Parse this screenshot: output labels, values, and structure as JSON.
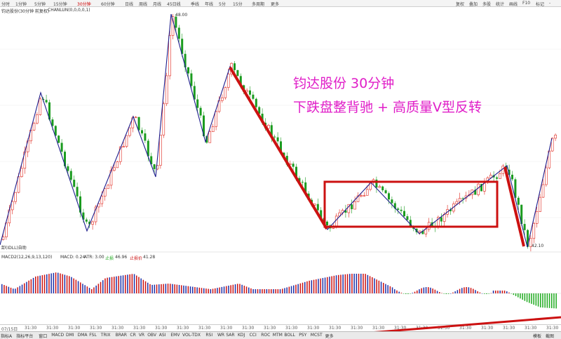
{
  "toolbar": {
    "timeframes": [
      "分时",
      "1分钟",
      "5分钟",
      "15分钟",
      "30分钟",
      "60分钟",
      "日线",
      "周线",
      "月线",
      "45日线",
      "季线",
      "年线",
      "5分",
      "15分",
      "多周期",
      "更多"
    ],
    "active_timeframe_index": 4,
    "right_items": [
      "复权",
      "叠加",
      "多股",
      "统计",
      "画线",
      "F10",
      "标记",
      "-"
    ]
  },
  "info_bar": {
    "stock_label": "钧达股份(30分钟 前复权)",
    "indicator_label": "CHANLUN(0,0,0,0,1)"
  },
  "main_chart": {
    "high_price_label": "48.00",
    "low_left_label": "卸(IDLL)自助",
    "low_right_label": "42.10"
  },
  "annotation": {
    "line1": "钧达股份  30分钟",
    "line2": "下跌盘整背驰 + 高质量V型反转"
  },
  "macd_bar": {
    "label": "MACD2(12,26,9,13,120)",
    "macd_value": "MACD: 0.24",
    "atr_value": "ATR: 3.00",
    "up_label": "止损",
    "up_value": "46.96",
    "stop_label": "止损价",
    "stop_value": "41.28"
  },
  "time_axis": {
    "first_label": "07/15日",
    "tick_label": "31:30"
  },
  "bottom_tabs": {
    "tabs": [
      "指标A",
      "指标平台",
      "窗口",
      "MACD",
      "DMI",
      "DMA",
      "FSL",
      "TRIX",
      "BRAR",
      "CR",
      "VR",
      "OBV",
      "ASI",
      "EMV",
      "VOL-TDX",
      "RSI",
      "WR",
      "SAR",
      "KDJ",
      "CCI",
      "ROC",
      "MTM",
      "BOLL",
      "PSY",
      "MCST",
      "更多"
    ],
    "right_items": [
      "模板",
      "截图"
    ]
  },
  "colors": {
    "up": "#e0261c",
    "down": "#1a9b1f",
    "zigzag": "#1c1c8c",
    "annotation": "#e01ec8",
    "red_marker": "#cc1111",
    "macd_pos": "#cc1111",
    "macd_neg": "#1eaa1e",
    "macd_blue": "#1c2fa8"
  }
}
